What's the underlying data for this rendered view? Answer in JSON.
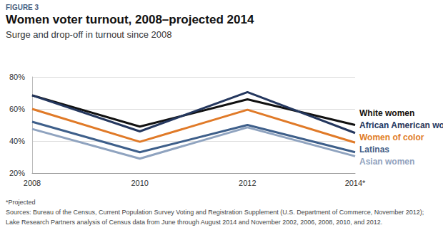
{
  "chart_data": {
    "type": "line",
    "figure_label": "FIGURE 3",
    "title": "Women voter turnout, 2008–projected 2014",
    "subtitle": "Surge and drop-off in turnout since 2008",
    "categories": [
      "2008",
      "2010",
      "2012",
      "2014*"
    ],
    "series": [
      {
        "name": "White women",
        "color": "#111111",
        "values": [
          68.5,
          49,
          66,
          50
        ]
      },
      {
        "name": "African American women",
        "color": "#24375e",
        "values": [
          68.5,
          46,
          70.5,
          45
        ]
      },
      {
        "name": "Women of color",
        "color": "#e07a28",
        "values": [
          60,
          39.5,
          59.5,
          39
        ]
      },
      {
        "name": "Latinas",
        "color": "#3e5f8a",
        "values": [
          52,
          33,
          50,
          33
        ]
      },
      {
        "name": "Asian women",
        "color": "#8fa3bf",
        "values": [
          47.5,
          29,
          48.5,
          30.5
        ]
      }
    ],
    "ylim": [
      20,
      80
    ],
    "yticks": [
      {
        "value": 20,
        "label": "20%"
      },
      {
        "value": 40,
        "label": "40%"
      },
      {
        "value": 60,
        "label": "60%"
      },
      {
        "value": 80,
        "label": "80%"
      }
    ],
    "grid": true,
    "legend": "right",
    "notes": [
      "*Projected",
      "Sources: Bureau of the Census, Current Population Survey Voting and Registration Supplement (U.S. Department of Commerce, November 2012);",
      "Lake Research Partners analysis of Census data from June through August 2014 and November 2002, 2006, 2008, 2010, and 2012."
    ]
  }
}
